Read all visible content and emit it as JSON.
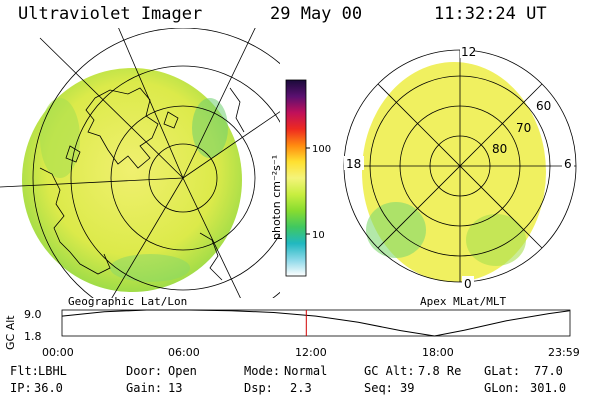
{
  "header": {
    "title": "Ultraviolet Imager",
    "date": "29 May 00",
    "time": "11:32:24 UT"
  },
  "left_panel": {
    "caption": "Geographic Lat/Lon"
  },
  "right_panel": {
    "caption": "Apex MLat/MLT",
    "mlt_labels": {
      "top": "12",
      "left": "18",
      "right": "6",
      "bottom": "0"
    },
    "lat_labels": [
      "60",
      "70",
      "80"
    ]
  },
  "colorbar": {
    "unit": "photon cm⁻²s⁻¹",
    "ticks": [
      "100",
      "10"
    ],
    "colors": [
      "#1a0a3a",
      "#5a1070",
      "#c0105a",
      "#ee2a20",
      "#ff8a10",
      "#ffe030",
      "#f4f47a",
      "#c8ee40",
      "#88dc30",
      "#40c860",
      "#20b8c0",
      "#8ad8e8",
      "#ffffff"
    ]
  },
  "altitude_plot": {
    "ylabel": "GC Alt",
    "y_ticks": [
      "9.0",
      "1.8"
    ],
    "x_ticks": [
      "00:00",
      "06:00",
      "12:00",
      "18:00",
      "23:59"
    ],
    "y_range": [
      1.8,
      9.0
    ],
    "current_time_hours": 11.54,
    "profile": [
      {
        "t": 0.0,
        "alt": 7.3
      },
      {
        "t": 2.0,
        "alt": 8.5
      },
      {
        "t": 4.0,
        "alt": 9.0
      },
      {
        "t": 6.0,
        "alt": 9.0
      },
      {
        "t": 8.0,
        "alt": 8.8
      },
      {
        "t": 10.0,
        "alt": 8.3
      },
      {
        "t": 12.0,
        "alt": 7.3
      },
      {
        "t": 14.0,
        "alt": 5.6
      },
      {
        "t": 16.0,
        "alt": 3.3
      },
      {
        "t": 17.6,
        "alt": 1.8
      },
      {
        "t": 19.0,
        "alt": 3.4
      },
      {
        "t": 21.0,
        "alt": 6.0
      },
      {
        "t": 23.0,
        "alt": 8.0
      },
      {
        "t": 23.98,
        "alt": 8.8
      }
    ]
  },
  "status": {
    "row1": {
      "flt_label": "Flt:",
      "flt_value": "LBHL",
      "door_label": "Door:",
      "door_value": "Open",
      "mode_label": "Mode:",
      "mode_value": "Normal",
      "gcalt_label": "GC Alt:",
      "gcalt_value": "7.8 Re",
      "glat_label": "GLat:",
      "glat_value": "77.0"
    },
    "row2": {
      "ip_label": "IP:",
      "ip_value": "36.0",
      "gain_label": "Gain:",
      "gain_value": "13",
      "dsp_label": "Dsp:",
      "dsp_value": "2.3",
      "seq_label": "Seq:",
      "seq_value": "39",
      "glon_label": "GLon:",
      "glon_value": "301.0"
    }
  }
}
